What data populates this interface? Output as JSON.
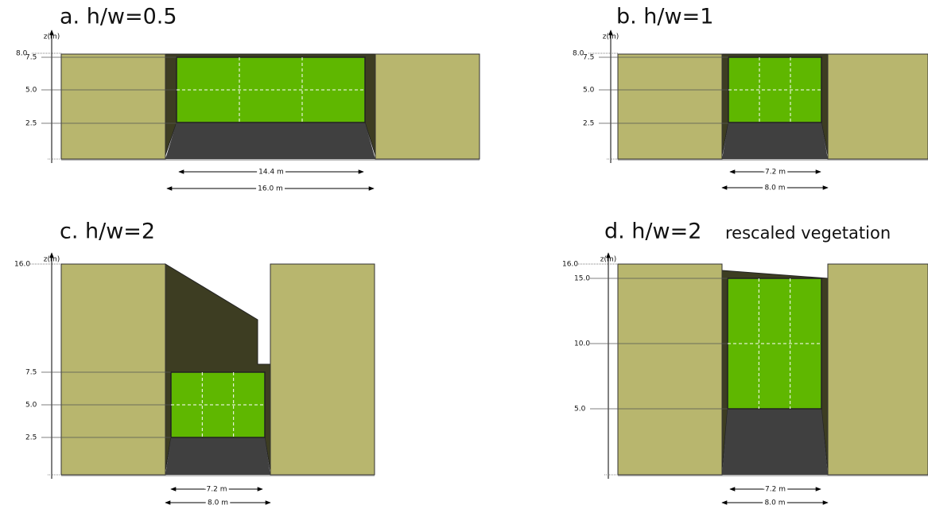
{
  "panels": [
    {
      "title": "a. h/w=0.5",
      "axis_label": "z(m)",
      "ticks": [
        "8.0",
        "7.5",
        "5.0",
        "2.5"
      ],
      "dimensions": [
        "14.4 m",
        "16.0 m"
      ]
    },
    {
      "title": "b. h/w=1",
      "axis_label": "z(m)",
      "ticks": [
        "8.0",
        "7.5",
        "5.0",
        "2.5"
      ],
      "dimensions": [
        "7.2 m",
        "8.0 m"
      ]
    },
    {
      "title": "c. h/w=2",
      "axis_label": "z(m)",
      "ticks": [
        "16.0",
        "7.5",
        "5.0",
        "2.5"
      ],
      "dimensions": [
        "7.2 m",
        "8.0 m"
      ]
    },
    {
      "title": "d. h/w=2",
      "subtitle": "rescaled vegetation",
      "axis_label": "z(m)",
      "ticks": [
        "16.0",
        "15.0",
        "10.0",
        "5.0"
      ],
      "dimensions": [
        "7.2 m",
        "8.0 m"
      ]
    }
  ]
}
